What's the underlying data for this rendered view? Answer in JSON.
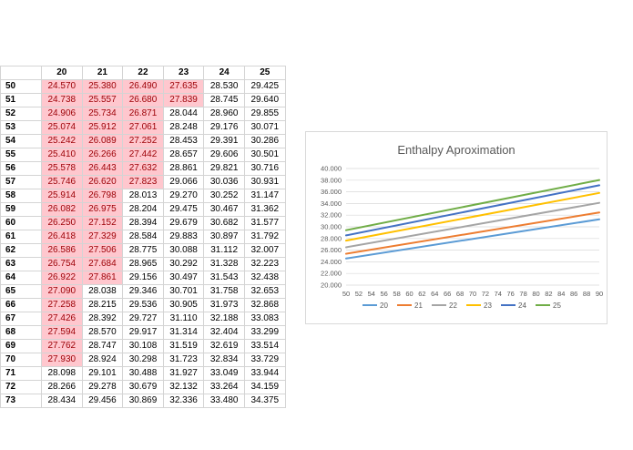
{
  "sheet": {
    "columns": [
      "20",
      "21",
      "22",
      "23",
      "24",
      "25"
    ],
    "rows": [
      {
        "label": "50",
        "values": [
          "24.570",
          "25.380",
          "26.490",
          "27.635",
          "28.530",
          "29.425"
        ],
        "highlight": 4
      },
      {
        "label": "51",
        "values": [
          "24.738",
          "25.557",
          "26.680",
          "27.839",
          "28.745",
          "29.640"
        ],
        "highlight": 4
      },
      {
        "label": "52",
        "values": [
          "24.906",
          "25.734",
          "26.871",
          "28.044",
          "28.960",
          "29.855"
        ],
        "highlight": 3
      },
      {
        "label": "53",
        "values": [
          "25.074",
          "25.912",
          "27.061",
          "28.248",
          "29.176",
          "30.071"
        ],
        "highlight": 3
      },
      {
        "label": "54",
        "values": [
          "25.242",
          "26.089",
          "27.252",
          "28.453",
          "29.391",
          "30.286"
        ],
        "highlight": 3
      },
      {
        "label": "55",
        "values": [
          "25.410",
          "26.266",
          "27.442",
          "28.657",
          "29.606",
          "30.501"
        ],
        "highlight": 3
      },
      {
        "label": "56",
        "values": [
          "25.578",
          "26.443",
          "27.632",
          "28.861",
          "29.821",
          "30.716"
        ],
        "highlight": 3
      },
      {
        "label": "57",
        "values": [
          "25.746",
          "26.620",
          "27.823",
          "29.066",
          "30.036",
          "30.931"
        ],
        "highlight": 3
      },
      {
        "label": "58",
        "values": [
          "25.914",
          "26.798",
          "28.013",
          "29.270",
          "30.252",
          "31.147"
        ],
        "highlight": 2
      },
      {
        "label": "59",
        "values": [
          "26.082",
          "26.975",
          "28.204",
          "29.475",
          "30.467",
          "31.362"
        ],
        "highlight": 2
      },
      {
        "label": "60",
        "values": [
          "26.250",
          "27.152",
          "28.394",
          "29.679",
          "30.682",
          "31.577"
        ],
        "highlight": 2
      },
      {
        "label": "61",
        "values": [
          "26.418",
          "27.329",
          "28.584",
          "29.883",
          "30.897",
          "31.792"
        ],
        "highlight": 2
      },
      {
        "label": "62",
        "values": [
          "26.586",
          "27.506",
          "28.775",
          "30.088",
          "31.112",
          "32.007"
        ],
        "highlight": 2
      },
      {
        "label": "63",
        "values": [
          "26.754",
          "27.684",
          "28.965",
          "30.292",
          "31.328",
          "32.223"
        ],
        "highlight": 2
      },
      {
        "label": "64",
        "values": [
          "26.922",
          "27.861",
          "29.156",
          "30.497",
          "31.543",
          "32.438"
        ],
        "highlight": 2
      },
      {
        "label": "65",
        "values": [
          "27.090",
          "28.038",
          "29.346",
          "30.701",
          "31.758",
          "32.653"
        ],
        "highlight": 1
      },
      {
        "label": "66",
        "values": [
          "27.258",
          "28.215",
          "29.536",
          "30.905",
          "31.973",
          "32.868"
        ],
        "highlight": 1
      },
      {
        "label": "67",
        "values": [
          "27.426",
          "28.392",
          "29.727",
          "31.110",
          "32.188",
          "33.083"
        ],
        "highlight": 1
      },
      {
        "label": "68",
        "values": [
          "27.594",
          "28.570",
          "29.917",
          "31.314",
          "32.404",
          "33.299"
        ],
        "highlight": 1
      },
      {
        "label": "69",
        "values": [
          "27.762",
          "28.747",
          "30.108",
          "31.519",
          "32.619",
          "33.514"
        ],
        "highlight": 1
      },
      {
        "label": "70",
        "values": [
          "27.930",
          "28.924",
          "30.298",
          "31.723",
          "32.834",
          "33.729"
        ],
        "highlight": 1
      },
      {
        "label": "71",
        "values": [
          "28.098",
          "29.101",
          "30.488",
          "31.927",
          "33.049",
          "33.944"
        ],
        "highlight": 0
      },
      {
        "label": "72",
        "values": [
          "28.266",
          "29.278",
          "30.679",
          "32.132",
          "33.264",
          "34.159"
        ],
        "highlight": 0
      },
      {
        "label": "73",
        "values": [
          "28.434",
          "29.456",
          "30.869",
          "32.336",
          "33.480",
          "34.375"
        ],
        "highlight": 0
      }
    ]
  },
  "chart_data": {
    "type": "line",
    "title": "Enthalpy Aproximation",
    "xlabel": "",
    "ylabel": "",
    "x": [
      50,
      52,
      54,
      56,
      58,
      60,
      62,
      64,
      66,
      68,
      70,
      72,
      74,
      76,
      78,
      80,
      82,
      84,
      86,
      88,
      90
    ],
    "x_tick_labels": [
      "50",
      "52",
      "54",
      "56",
      "58",
      "60",
      "62",
      "64",
      "66",
      "68",
      "70",
      "72",
      "74",
      "76",
      "78",
      "80",
      "82",
      "84",
      "86",
      "88",
      "90"
    ],
    "ylim": [
      20,
      40
    ],
    "y_ticks": [
      20,
      22,
      24,
      26,
      28,
      30,
      32,
      34,
      36,
      38,
      40
    ],
    "y_tick_labels": [
      "20.000",
      "22.000",
      "24.000",
      "26.000",
      "28.000",
      "30.000",
      "32.000",
      "34.000",
      "36.000",
      "38.000",
      "40.000"
    ],
    "grid": "horizontal",
    "legend": "bottom",
    "series": [
      {
        "name": "20",
        "color": "#5b9bd5",
        "start": 24.57,
        "end": 31.29
      },
      {
        "name": "21",
        "color": "#ed7d31",
        "start": 25.38,
        "end": 32.46
      },
      {
        "name": "22",
        "color": "#a5a5a5",
        "start": 26.49,
        "end": 34.11
      },
      {
        "name": "23",
        "color": "#ffc000",
        "start": 27.635,
        "end": 35.81
      },
      {
        "name": "24",
        "color": "#4472c4",
        "start": 28.53,
        "end": 37.13
      },
      {
        "name": "25",
        "color": "#70ad47",
        "start": 29.425,
        "end": 38.03
      }
    ]
  }
}
